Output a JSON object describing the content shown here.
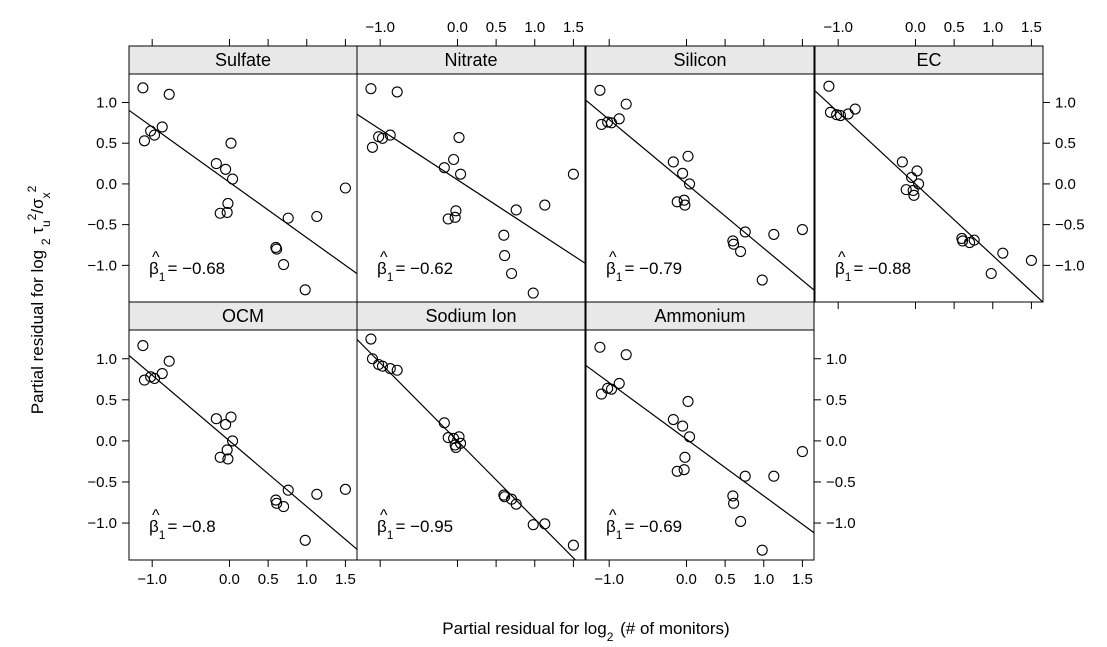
{
  "chart_data": {
    "type": "scatter",
    "xlabel": "Partial residual for log₂ (# of monitors)",
    "ylabel": "Partial residual for log₂ τᵤ²/σₓ²",
    "x_range": [
      -1.3,
      1.65
    ],
    "y_range": [
      -1.45,
      1.35
    ],
    "x_ticks": [
      -1.0,
      0.0,
      0.5,
      1.0,
      1.5
    ],
    "x_tick_labels": [
      "−1.0",
      "0.0",
      "0.5",
      "1.0",
      "1.5"
    ],
    "y_ticks": [
      1.0,
      0.5,
      0.0,
      -0.5,
      -1.0
    ],
    "y_tick_labels": [
      "1.0",
      "0.5",
      "0.0",
      "−0.5",
      "−1.0"
    ],
    "x_monitors": [
      -1.12,
      -1.1,
      -1.02,
      -0.97,
      -0.87,
      -0.78,
      -0.17,
      -0.12,
      -0.05,
      -0.03,
      -0.02,
      0.02,
      0.04,
      0.6,
      0.61,
      0.7,
      0.76,
      0.98,
      1.13,
      1.5
    ],
    "panels": [
      {
        "name": "Sulfate",
        "beta_text": "= −0.68",
        "slope": -0.68,
        "intercept": 0.02,
        "y": [
          1.18,
          0.53,
          0.65,
          0.6,
          0.7,
          1.1,
          0.25,
          -0.36,
          0.18,
          -0.35,
          -0.24,
          0.5,
          0.06,
          -0.78,
          -0.8,
          -0.99,
          -0.42,
          -1.3,
          -0.4,
          -0.05
        ]
      },
      {
        "name": "Nitrate",
        "beta_text": "= −0.62",
        "slope": -0.62,
        "intercept": 0.05,
        "y": [
          1.17,
          0.45,
          0.58,
          0.56,
          0.6,
          1.13,
          0.2,
          -0.43,
          0.3,
          -0.41,
          -0.33,
          0.57,
          0.12,
          -0.63,
          -0.88,
          -1.1,
          -0.32,
          -1.34,
          -0.26,
          0.12
        ]
      },
      {
        "name": "Silicon",
        "beta_text": "= −0.79",
        "slope": -0.79,
        "intercept": 0.0,
        "y": [
          1.15,
          0.73,
          0.76,
          0.75,
          0.8,
          0.98,
          0.27,
          -0.22,
          0.13,
          -0.2,
          -0.26,
          0.34,
          0.0,
          -0.7,
          -0.74,
          -0.83,
          -0.59,
          -1.18,
          -0.62,
          -0.56
        ]
      },
      {
        "name": "EC",
        "beta_text": "= −0.88",
        "slope": -0.88,
        "intercept": 0.0,
        "y": [
          1.2,
          0.88,
          0.85,
          0.84,
          0.86,
          0.92,
          0.27,
          -0.07,
          0.08,
          -0.08,
          -0.14,
          0.16,
          0.0,
          -0.67,
          -0.7,
          -0.72,
          -0.69,
          -1.1,
          -0.85,
          -0.94
        ]
      },
      {
        "name": "OCM",
        "beta_text": "= −0.8",
        "slope": -0.8,
        "intercept": 0.0,
        "y": [
          1.16,
          0.74,
          0.78,
          0.76,
          0.82,
          0.97,
          0.27,
          -0.2,
          0.2,
          -0.11,
          -0.22,
          0.29,
          0.0,
          -0.72,
          -0.76,
          -0.8,
          -0.6,
          -1.21,
          -0.65,
          -0.59
        ]
      },
      {
        "name": "Sodium Ion",
        "beta_text": "= −0.95",
        "slope": -0.95,
        "intercept": 0.0,
        "y": [
          1.24,
          1.0,
          0.93,
          0.91,
          0.88,
          0.86,
          0.22,
          0.04,
          0.03,
          -0.05,
          -0.08,
          0.05,
          -0.03,
          -0.66,
          -0.68,
          -0.71,
          -0.77,
          -1.02,
          -1.01,
          -1.27
        ]
      },
      {
        "name": "Ammonium",
        "beta_text": "= −0.69",
        "slope": -0.69,
        "intercept": 0.02,
        "y": [
          1.14,
          0.57,
          0.64,
          0.63,
          0.7,
          1.05,
          0.26,
          -0.37,
          0.18,
          -0.35,
          -0.2,
          0.48,
          0.05,
          -0.67,
          -0.76,
          -0.98,
          -0.43,
          -1.33,
          -0.43,
          -0.13
        ]
      }
    ]
  }
}
